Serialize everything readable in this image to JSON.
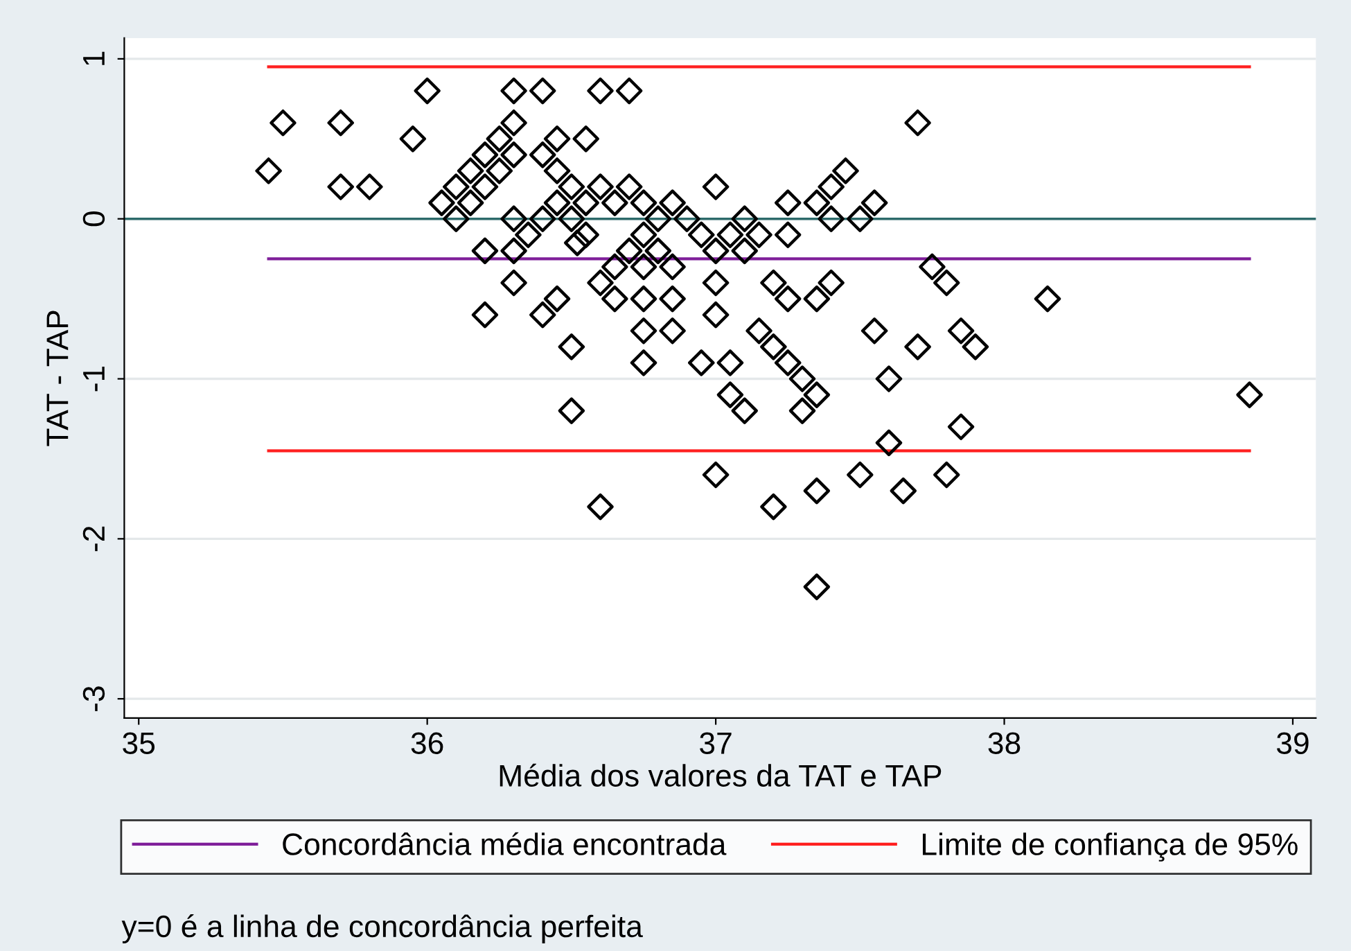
{
  "chart_data": {
    "type": "scatter",
    "xlabel": "Média dos valores da TAT e TAP",
    "ylabel": "TAT - TAP",
    "xlim": [
      34.95,
      39.08
    ],
    "ylim": [
      -3.12,
      1.13
    ],
    "xticks": [
      35,
      36,
      37,
      38,
      39
    ],
    "yticks": [
      -3,
      -2,
      -1,
      0,
      1
    ],
    "grid": "y",
    "legend": "bottom",
    "ref_lines": [
      {
        "axis": "y",
        "value": 0,
        "label": null,
        "color": "#2e6b6b"
      }
    ],
    "annotations": [
      "y=0 é a linha de concordância perfeita"
    ],
    "series": [
      {
        "marker": "diamond",
        "color": "#000000",
        "x": [
          35.45,
          35.5,
          35.7,
          35.7,
          35.8,
          35.95,
          36.0,
          36.05,
          36.1,
          36.1,
          36.15,
          36.15,
          36.2,
          36.2,
          36.2,
          36.2,
          36.25,
          36.25,
          36.3,
          36.3,
          36.3,
          36.3,
          36.3,
          36.3,
          36.35,
          36.4,
          36.4,
          36.4,
          36.4,
          36.45,
          36.45,
          36.45,
          36.45,
          36.5,
          36.5,
          36.5,
          36.5,
          36.52,
          36.55,
          36.55,
          36.55,
          36.6,
          36.6,
          36.6,
          36.6,
          36.65,
          36.65,
          36.65,
          36.7,
          36.7,
          36.7,
          36.75,
          36.75,
          36.75,
          36.75,
          36.75,
          36.75,
          36.8,
          36.8,
          36.85,
          36.85,
          36.85,
          36.85,
          36.9,
          36.95,
          36.95,
          37.0,
          37.0,
          37.0,
          37.0,
          37.0,
          37.05,
          37.05,
          37.05,
          37.1,
          37.1,
          37.1,
          37.15,
          37.15,
          37.2,
          37.2,
          37.2,
          37.25,
          37.25,
          37.25,
          37.25,
          37.3,
          37.3,
          37.35,
          37.35,
          37.35,
          37.35,
          37.35,
          37.4,
          37.4,
          37.4,
          37.45,
          37.5,
          37.5,
          37.55,
          37.55,
          37.6,
          37.6,
          37.65,
          37.7,
          37.7,
          37.75,
          37.8,
          37.8,
          37.85,
          37.85,
          37.9,
          38.15,
          38.85
        ],
        "values": [
          0.3,
          0.6,
          0.6,
          0.2,
          0.2,
          0.5,
          0.8,
          0.1,
          0.2,
          0.0,
          0.3,
          0.1,
          0.4,
          0.2,
          -0.2,
          -0.6,
          0.5,
          0.3,
          0.6,
          0.8,
          0.4,
          0.0,
          -0.2,
          -0.4,
          -0.1,
          0.8,
          0.4,
          0.0,
          -0.6,
          0.5,
          0.3,
          0.1,
          -0.5,
          0.2,
          0.0,
          -0.8,
          -1.2,
          -0.15,
          -0.1,
          0.5,
          0.1,
          0.8,
          0.2,
          -0.4,
          -1.8,
          0.1,
          -0.3,
          -0.5,
          0.8,
          0.2,
          -0.2,
          0.1,
          -0.1,
          -0.3,
          -0.5,
          -0.7,
          -0.9,
          0.0,
          -0.2,
          0.1,
          -0.3,
          -0.5,
          -0.7,
          0.0,
          -0.1,
          -0.9,
          0.2,
          -0.2,
          -0.4,
          -0.6,
          -1.6,
          -0.1,
          -0.9,
          -1.1,
          0.0,
          -0.2,
          -1.2,
          -0.1,
          -0.7,
          -0.4,
          -0.8,
          -1.8,
          0.1,
          -0.1,
          -0.5,
          -0.9,
          -1.0,
          -1.2,
          0.1,
          -0.5,
          -1.1,
          -1.7,
          -2.3,
          0.2,
          0.0,
          -0.4,
          0.3,
          0.0,
          -1.6,
          0.1,
          -0.7,
          -1.0,
          -1.4,
          -1.7,
          0.6,
          -0.8,
          -0.3,
          -0.4,
          -1.6,
          -0.7,
          -1.3,
          -0.8,
          -0.5,
          -1.1
        ]
      },
      {
        "type": "line",
        "name": "Concordância média encontrada",
        "color": "#7f1f9a",
        "x": [
          35.45,
          38.85
        ],
        "values": [
          -0.25,
          -0.25
        ]
      },
      {
        "type": "line",
        "name": "Limite de confiança de 95%",
        "color": "#ff2020",
        "x": [
          35.45,
          38.85
        ],
        "values": [
          0.95,
          0.95
        ]
      },
      {
        "type": "line",
        "color": "#ff2020",
        "x": [
          35.45,
          38.85
        ],
        "values": [
          -1.45,
          -1.45
        ]
      }
    ]
  }
}
